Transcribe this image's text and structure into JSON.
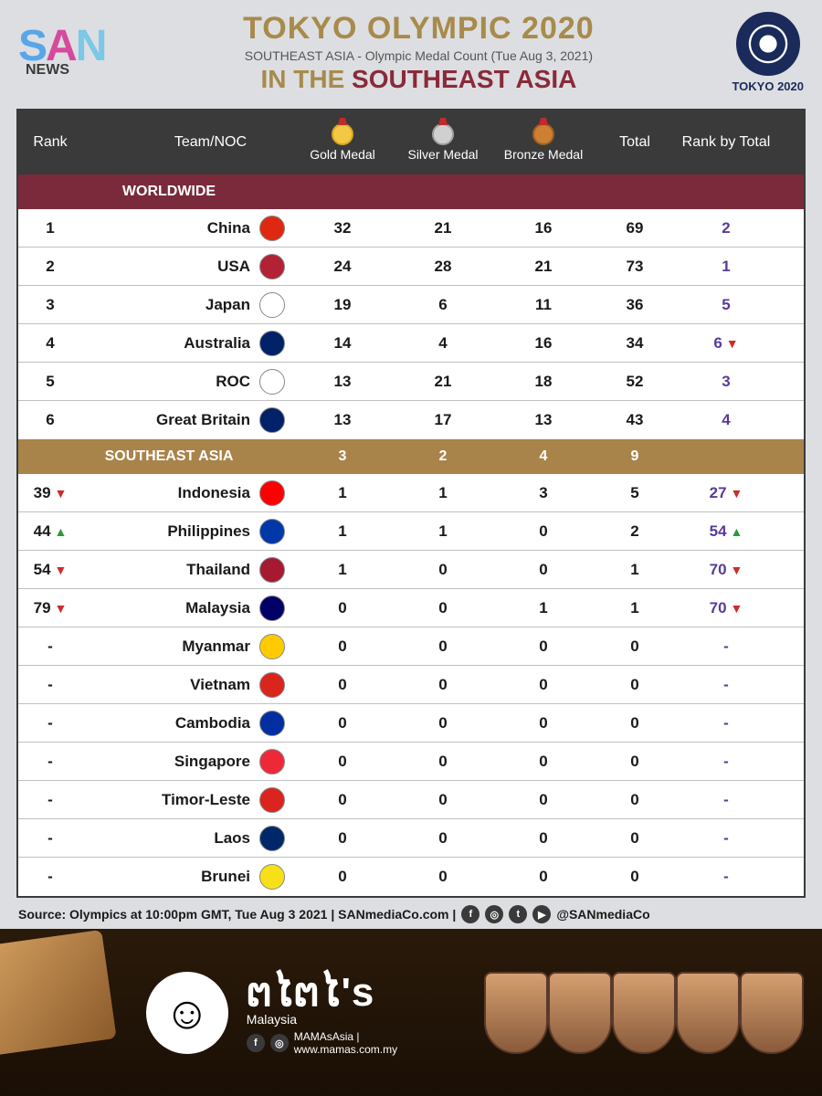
{
  "header": {
    "logo_san": "SAN",
    "logo_news": "NEWS",
    "title": "TOKYO OLYMPIC 2020",
    "subtitle": "SOUTHEAST ASIA - Olympic Medal Count (Tue Aug 3, 2021)",
    "in_the": "IN THE ",
    "sea": "SOUTHEAST ASIA",
    "tokyo_label": "TOKYO 2020"
  },
  "columns": {
    "rank": "Rank",
    "team": "Team/NOC",
    "gold": "Gold Medal",
    "silver": "Silver Medal",
    "bronze": "Bronze Medal",
    "total": "Total",
    "rbt": "Rank by Total"
  },
  "sections": {
    "worldwide": "WORLDWIDE",
    "sea": "SOUTHEAST ASIA",
    "sea_gold": "3",
    "sea_silver": "2",
    "sea_bronze": "4",
    "sea_total": "9"
  },
  "worldwide_rows": [
    {
      "rank": "1",
      "team": "China",
      "flag": "#de2910",
      "gold": "32",
      "silver": "21",
      "bronze": "16",
      "total": "69",
      "rbt": "2",
      "rbt_arrow": ""
    },
    {
      "rank": "2",
      "team": "USA",
      "flag": "#b22234",
      "gold": "24",
      "silver": "28",
      "bronze": "21",
      "total": "73",
      "rbt": "1",
      "rbt_arrow": ""
    },
    {
      "rank": "3",
      "team": "Japan",
      "flag": "#ffffff",
      "gold": "19",
      "silver": "6",
      "bronze": "11",
      "total": "36",
      "rbt": "5",
      "rbt_arrow": ""
    },
    {
      "rank": "4",
      "team": "Australia",
      "flag": "#012169",
      "gold": "14",
      "silver": "4",
      "bronze": "16",
      "total": "34",
      "rbt": "6",
      "rbt_arrow": "down"
    },
    {
      "rank": "5",
      "team": "ROC",
      "flag": "#ffffff",
      "gold": "13",
      "silver": "21",
      "bronze": "18",
      "total": "52",
      "rbt": "3",
      "rbt_arrow": ""
    },
    {
      "rank": "6",
      "team": "Great Britain",
      "flag": "#012169",
      "gold": "13",
      "silver": "17",
      "bronze": "13",
      "total": "43",
      "rbt": "4",
      "rbt_arrow": ""
    }
  ],
  "sea_rows": [
    {
      "rank": "39",
      "rank_arrow": "down",
      "team": "Indonesia",
      "flag": "#ff0000",
      "gold": "1",
      "silver": "1",
      "bronze": "3",
      "total": "5",
      "rbt": "27",
      "rbt_arrow": "down"
    },
    {
      "rank": "44",
      "rank_arrow": "up",
      "team": "Philippines",
      "flag": "#0038a8",
      "gold": "1",
      "silver": "1",
      "bronze": "0",
      "total": "2",
      "rbt": "54",
      "rbt_arrow": "up"
    },
    {
      "rank": "54",
      "rank_arrow": "down",
      "team": "Thailand",
      "flag": "#a51931",
      "gold": "1",
      "silver": "0",
      "bronze": "0",
      "total": "1",
      "rbt": "70",
      "rbt_arrow": "down"
    },
    {
      "rank": "79",
      "rank_arrow": "down",
      "team": "Malaysia",
      "flag": "#010066",
      "gold": "0",
      "silver": "0",
      "bronze": "1",
      "total": "1",
      "rbt": "70",
      "rbt_arrow": "down"
    },
    {
      "rank": "-",
      "rank_arrow": "",
      "team": "Myanmar",
      "flag": "#fecb00",
      "gold": "0",
      "silver": "0",
      "bronze": "0",
      "total": "0",
      "rbt": "-",
      "rbt_arrow": ""
    },
    {
      "rank": "-",
      "rank_arrow": "",
      "team": "Vietnam",
      "flag": "#da251d",
      "gold": "0",
      "silver": "0",
      "bronze": "0",
      "total": "0",
      "rbt": "-",
      "rbt_arrow": ""
    },
    {
      "rank": "-",
      "rank_arrow": "",
      "team": "Cambodia",
      "flag": "#032ea1",
      "gold": "0",
      "silver": "0",
      "bronze": "0",
      "total": "0",
      "rbt": "-",
      "rbt_arrow": ""
    },
    {
      "rank": "-",
      "rank_arrow": "",
      "team": "Singapore",
      "flag": "#ed2939",
      "gold": "0",
      "silver": "0",
      "bronze": "0",
      "total": "0",
      "rbt": "-",
      "rbt_arrow": ""
    },
    {
      "rank": "-",
      "rank_arrow": "",
      "team": "Timor-Leste",
      "flag": "#dc241f",
      "gold": "0",
      "silver": "0",
      "bronze": "0",
      "total": "0",
      "rbt": "-",
      "rbt_arrow": ""
    },
    {
      "rank": "-",
      "rank_arrow": "",
      "team": "Laos",
      "flag": "#002868",
      "gold": "0",
      "silver": "0",
      "bronze": "0",
      "total": "0",
      "rbt": "-",
      "rbt_arrow": ""
    },
    {
      "rank": "-",
      "rank_arrow": "",
      "team": "Brunei",
      "flag": "#f7e017",
      "gold": "0",
      "silver": "0",
      "bronze": "0",
      "total": "0",
      "rbt": "-",
      "rbt_arrow": ""
    }
  ],
  "source": {
    "text": "Source: Olympics at 10:00pm GMT, Tue Aug 3 2021 | SANmediaCo.com |",
    "handle": "@SANmediaCo"
  },
  "ad": {
    "brand": "ຕໄຕໄ's",
    "country": "Malaysia",
    "handle": "MAMAsAsia | www.mamas.com.my"
  }
}
